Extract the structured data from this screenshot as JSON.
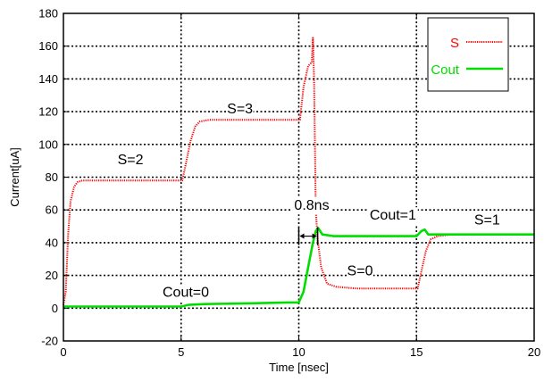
{
  "chart_data": {
    "type": "line",
    "title": "",
    "xlabel": "Time [nsec]",
    "ylabel": "Current[uA]",
    "xlim": [
      0,
      20
    ],
    "ylim": [
      -20,
      180
    ],
    "xticks": [
      0,
      5,
      10,
      15,
      20
    ],
    "yticks": [
      -20,
      0,
      20,
      40,
      60,
      80,
      100,
      120,
      140,
      160,
      180
    ],
    "grid": true,
    "legend_position": "top-right",
    "series": [
      {
        "name": "S",
        "color": "#ff0000",
        "style": "dotted",
        "points": [
          [
            0,
            2
          ],
          [
            0.1,
            10
          ],
          [
            0.2,
            45
          ],
          [
            0.3,
            65
          ],
          [
            0.45,
            74
          ],
          [
            0.6,
            77
          ],
          [
            0.8,
            78
          ],
          [
            2,
            78
          ],
          [
            4,
            78
          ],
          [
            5.05,
            78
          ],
          [
            5.2,
            88
          ],
          [
            5.4,
            102
          ],
          [
            5.6,
            111
          ],
          [
            5.8,
            114
          ],
          [
            6.2,
            115
          ],
          [
            8,
            115
          ],
          [
            10.05,
            115
          ],
          [
            10.2,
            135
          ],
          [
            10.4,
            148
          ],
          [
            10.55,
            150
          ],
          [
            10.6,
            165
          ],
          [
            10.65,
            140
          ],
          [
            10.72,
            60
          ],
          [
            10.8,
            42
          ],
          [
            10.95,
            25
          ],
          [
            11.2,
            15
          ],
          [
            11.6,
            13
          ],
          [
            12.5,
            12
          ],
          [
            14,
            12
          ],
          [
            15.05,
            12
          ],
          [
            15.2,
            22
          ],
          [
            15.4,
            35
          ],
          [
            15.6,
            42
          ],
          [
            15.9,
            44
          ],
          [
            16.5,
            45
          ],
          [
            18,
            45
          ],
          [
            20,
            45
          ]
        ]
      },
      {
        "name": "Cout",
        "color": "#00dd00",
        "style": "solid",
        "points": [
          [
            0,
            1
          ],
          [
            1,
            1
          ],
          [
            3,
            1
          ],
          [
            5,
            1
          ],
          [
            5.3,
            2
          ],
          [
            6,
            2.5
          ],
          [
            8,
            3
          ],
          [
            9.5,
            3.5
          ],
          [
            10,
            3.5
          ],
          [
            10.2,
            10
          ],
          [
            10.4,
            25
          ],
          [
            10.6,
            40
          ],
          [
            10.72,
            47
          ],
          [
            10.82,
            49
          ],
          [
            11,
            45
          ],
          [
            11.5,
            44
          ],
          [
            13,
            44
          ],
          [
            15,
            44
          ],
          [
            15.2,
            47
          ],
          [
            15.35,
            48
          ],
          [
            15.5,
            45
          ],
          [
            16,
            45
          ],
          [
            18,
            45
          ],
          [
            20,
            45
          ]
        ]
      }
    ],
    "annotations": [
      {
        "id": "s2",
        "text": "S=2",
        "x": 2.85,
        "y": 88
      },
      {
        "id": "s3",
        "text": "S=3",
        "x": 7.5,
        "y": 119
      },
      {
        "id": "s0",
        "text": "S=0",
        "x": 12.6,
        "y": 20
      },
      {
        "id": "s1",
        "text": "S=1",
        "x": 18.0,
        "y": 51
      },
      {
        "id": "cout0",
        "text": "Cout=0",
        "x": 5.2,
        "y": 7
      },
      {
        "id": "cout1",
        "text": "Cout=1",
        "x": 14.0,
        "y": 54
      },
      {
        "id": "delay",
        "text": "0.8ns",
        "x": 10.55,
        "y": 60
      }
    ],
    "delay_marker": {
      "x_start": 10.0,
      "x_end": 10.8,
      "y": 44,
      "label": "0.8ns"
    }
  }
}
